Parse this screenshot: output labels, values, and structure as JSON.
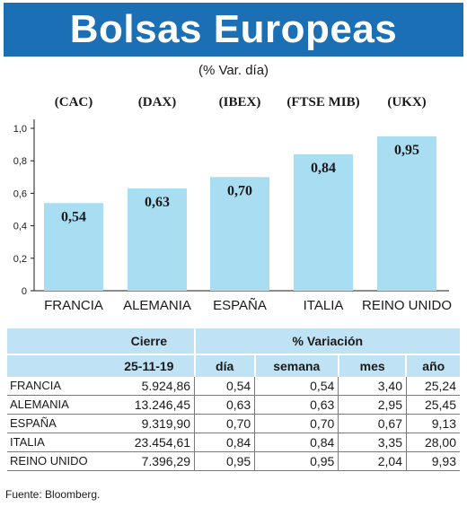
{
  "title": "Bolsas Europeas",
  "subtitle": "(% Var. día)",
  "colors": {
    "title_bg": "#1a6fb5",
    "bar": "#a8ddf2",
    "table_header": "#bfe3f5"
  },
  "chart_data": {
    "type": "bar",
    "categories": [
      "FRANCIA",
      "ALEMANIA",
      "ESPAÑA",
      "ITALIA",
      "REINO UNIDO"
    ],
    "indices": [
      "(CAC)",
      "(DAX)",
      "(IBEX)",
      "(FTSE MIB)",
      "(UKX)"
    ],
    "values": [
      0.54,
      0.63,
      0.7,
      0.84,
      0.95
    ],
    "value_labels": [
      "0,54",
      "0,63",
      "0,70",
      "0,84",
      "0,95"
    ],
    "yticks": [
      "0",
      "0,2",
      "0,4",
      "0,6",
      "0,8",
      "1,0"
    ],
    "ylim": [
      0,
      1.0
    ],
    "grid": false
  },
  "table": {
    "cierre_header": "Cierre",
    "date_header": "25-11-19",
    "variacion_header": "% Variación",
    "col_dia": "día",
    "col_semana": "semana",
    "col_mes": "mes",
    "col_anio": "año",
    "rows": [
      {
        "name": "FRANCIA",
        "cierre": "5.924,86",
        "dia": "0,54",
        "semana": "0,54",
        "mes": "3,40",
        "anio": "25,24"
      },
      {
        "name": "ALEMANIA",
        "cierre": "13.246,45",
        "dia": "0,63",
        "semana": "0,63",
        "mes": "2,95",
        "anio": "25,45"
      },
      {
        "name": "ESPAÑA",
        "cierre": "9.319,90",
        "dia": "0,70",
        "semana": "0,70",
        "mes": "0,67",
        "anio": "9,13"
      },
      {
        "name": "ITALIA",
        "cierre": "23.454,61",
        "dia": "0,84",
        "semana": "0,84",
        "mes": "3,35",
        "anio": "28,00"
      },
      {
        "name": "REINO UNIDO",
        "cierre": "7.396,29",
        "dia": "0,95",
        "semana": "0,95",
        "mes": "2,04",
        "anio": "9,93"
      }
    ]
  },
  "source": "Fuente: Bloomberg."
}
